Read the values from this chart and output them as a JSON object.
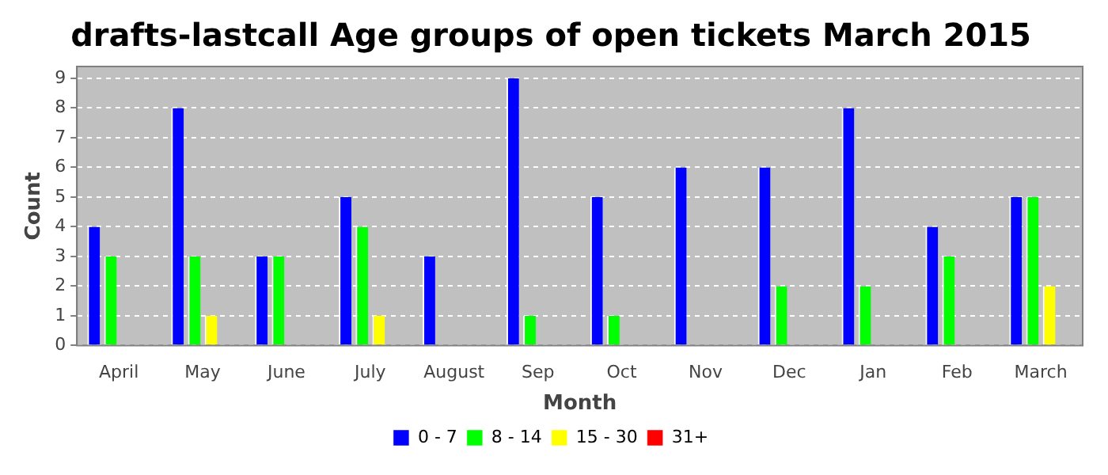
{
  "chart_data": {
    "type": "bar",
    "title": "drafts-lastcall Age groups of open tickets March 2015",
    "xlabel": "Month",
    "ylabel": "Count",
    "categories": [
      "April",
      "May",
      "June",
      "July",
      "August",
      "Sep",
      "Oct",
      "Nov",
      "Dec",
      "Jan",
      "Feb",
      "March"
    ],
    "series": [
      {
        "name": "0 - 7",
        "color": "#0000ff",
        "values": [
          4,
          8,
          3,
          5,
          3,
          9,
          5,
          6,
          6,
          8,
          4,
          5
        ]
      },
      {
        "name": "8 - 14",
        "color": "#00ff00",
        "values": [
          3,
          3,
          3,
          4,
          0,
          1,
          1,
          0,
          2,
          2,
          3,
          5
        ]
      },
      {
        "name": "15 - 30",
        "color": "#ffff00",
        "values": [
          0,
          1,
          0,
          1,
          0,
          0,
          0,
          0,
          0,
          0,
          0,
          2
        ]
      },
      {
        "name": "31+",
        "color": "#ff0000",
        "values": [
          0,
          0,
          0,
          0,
          0,
          0,
          0,
          0,
          0,
          0,
          0,
          0
        ]
      }
    ],
    "ylim": [
      0,
      9.4
    ],
    "yticks": [
      0,
      1,
      2,
      3,
      4,
      5,
      6,
      7,
      8,
      9
    ],
    "grid": "y",
    "legend": "bottom"
  }
}
